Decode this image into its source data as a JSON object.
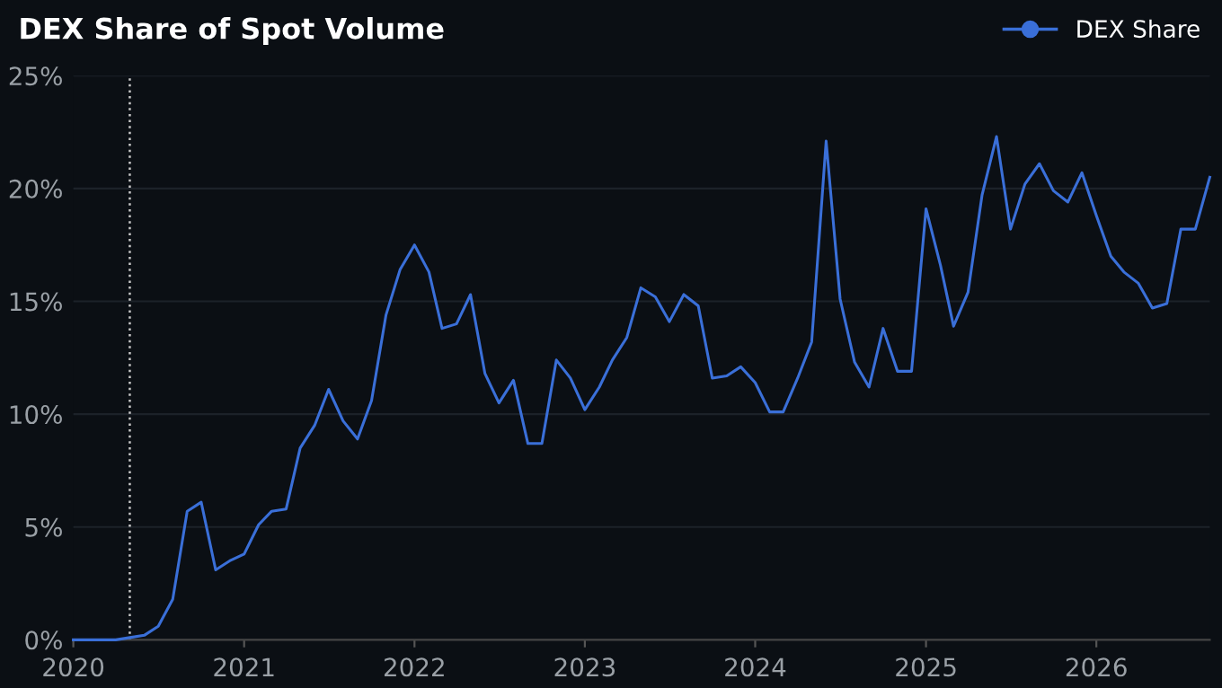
{
  "chart_data": {
    "type": "line",
    "title": "DEX Share of Spot Volume",
    "x": [
      "2020-01",
      "2020-02",
      "2020-03",
      "2020-04",
      "2020-05",
      "2020-06",
      "2020-07",
      "2020-08",
      "2020-09",
      "2020-10",
      "2020-11",
      "2020-12",
      "2021-01",
      "2021-02",
      "2021-03",
      "2021-04",
      "2021-05",
      "2021-06",
      "2021-07",
      "2021-08",
      "2021-09",
      "2021-10",
      "2021-11",
      "2021-12",
      "2022-01",
      "2022-02",
      "2022-03",
      "2022-04",
      "2022-05",
      "2022-06",
      "2022-07",
      "2022-08",
      "2022-09",
      "2022-10",
      "2022-11",
      "2022-12",
      "2023-01",
      "2023-02",
      "2023-03",
      "2023-04",
      "2023-05",
      "2023-06",
      "2023-07",
      "2023-08",
      "2023-09",
      "2023-10",
      "2023-11",
      "2023-12",
      "2024-01",
      "2024-02",
      "2024-03",
      "2024-04",
      "2024-05",
      "2024-06",
      "2024-07",
      "2024-08",
      "2024-09",
      "2024-10",
      "2024-11",
      "2024-12",
      "2025-01",
      "2025-02",
      "2025-03",
      "2025-04",
      "2025-05",
      "2025-06",
      "2025-07",
      "2025-08",
      "2025-09",
      "2025-10",
      "2025-11",
      "2025-12",
      "2026-01",
      "2026-02",
      "2026-03",
      "2026-04",
      "2026-05",
      "2026-06",
      "2026-07",
      "2026-08",
      "2026-09"
    ],
    "series": [
      {
        "name": "DEX Share",
        "color": "#3a6fd8",
        "values": [
          0,
          0,
          0,
          0,
          0.1,
          0.2,
          0.6,
          1.8,
          5.7,
          6.1,
          3.1,
          3.5,
          3.8,
          5.1,
          5.7,
          5.8,
          8.5,
          9.5,
          11.1,
          9.7,
          8.9,
          10.6,
          14.4,
          16.4,
          17.5,
          16.3,
          13.8,
          14.0,
          15.3,
          11.8,
          10.5,
          11.5,
          8.7,
          8.7,
          12.4,
          11.6,
          10.2,
          11.2,
          12.4,
          13.4,
          15.6,
          15.2,
          14.1,
          15.3,
          14.8,
          11.6,
          11.7,
          12.1,
          11.4,
          10.1,
          10.1,
          11.6,
          13.2,
          22.1,
          15.1,
          12.3,
          11.2,
          13.8,
          11.9,
          11.9,
          19.1,
          16.6,
          13.9,
          15.4,
          19.7,
          22.3,
          18.2,
          20.2,
          21.1,
          19.9,
          19.4,
          20.7,
          18.8,
          17.0,
          16.3,
          15.8,
          14.7,
          14.9,
          18.2,
          18.2,
          20.5
        ]
      }
    ],
    "xlim": [
      "2020-01",
      "2026-09"
    ],
    "xticks": [
      {
        "value": "2020",
        "label": "2020"
      },
      {
        "value": "2021",
        "label": "2021"
      },
      {
        "value": "2022",
        "label": "2022"
      },
      {
        "value": "2023",
        "label": "2023"
      },
      {
        "value": "2024",
        "label": "2024"
      },
      {
        "value": "2025",
        "label": "2025"
      },
      {
        "value": "2026",
        "label": "2026"
      }
    ],
    "ylim": [
      0,
      25
    ],
    "yticks": [
      {
        "value": 0,
        "label": "0%"
      },
      {
        "value": 5,
        "label": "5%"
      },
      {
        "value": 10,
        "label": "10%"
      },
      {
        "value": 15,
        "label": "15%"
      },
      {
        "value": 20,
        "label": "20%"
      },
      {
        "value": 25,
        "label": "25%"
      }
    ],
    "ref_lines": [
      {
        "axis": "x",
        "value": "2020-05",
        "color": "#c8c8c8",
        "line_style": "dotted"
      }
    ],
    "grid": "y",
    "legend": "top right",
    "line_style": "solid"
  }
}
